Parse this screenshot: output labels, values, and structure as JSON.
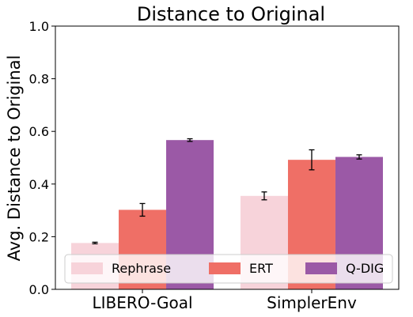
{
  "chart_data": {
    "type": "bar",
    "title": "Distance to Original",
    "xlabel": "",
    "ylabel": "Avg. Distance to Original",
    "categories": [
      "LIBERO-Goal",
      "SimplerEnv"
    ],
    "series": [
      {
        "name": "Rephrase",
        "values": [
          0.176,
          0.355
        ],
        "errors": [
          0.003,
          0.015
        ],
        "color": "#f7d3da"
      },
      {
        "name": "ERT",
        "values": [
          0.302,
          0.492
        ],
        "errors": [
          0.024,
          0.038
        ],
        "color": "#ef6f66"
      },
      {
        "name": "Q-DIG",
        "values": [
          0.567,
          0.503
        ],
        "errors": [
          0.005,
          0.008
        ],
        "color": "#9b59a6"
      }
    ],
    "ylim": [
      0,
      1.0
    ],
    "yticks": [
      "0.0",
      "0.2",
      "0.4",
      "0.6",
      "0.8",
      "1.0"
    ],
    "grid": false,
    "legend_placement": "bottom-center"
  }
}
